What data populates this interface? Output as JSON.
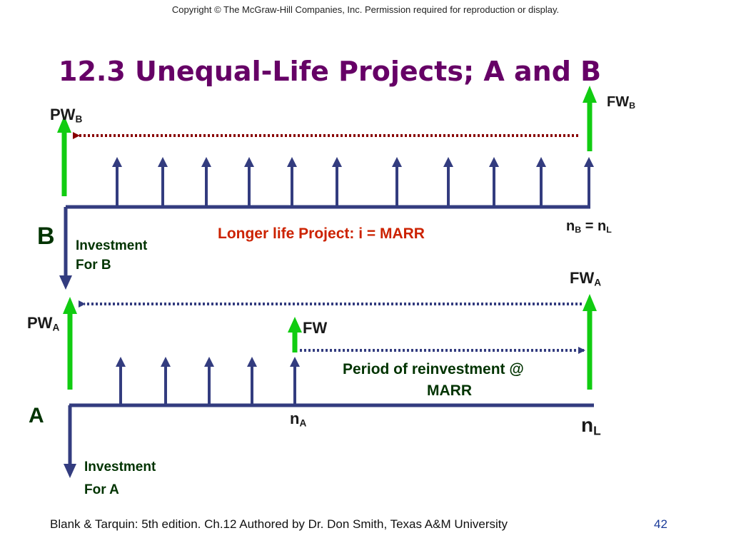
{
  "copyright": "Copyright © The McGraw-Hill Companies, Inc. Permission required for reproduction or display.",
  "title": "12.3 Unequal-Life Projects; A and B",
  "project_b": {
    "label": "B",
    "pw": "PW",
    "pw_sub": "B",
    "fw": "FW",
    "fw_sub": "B",
    "end_label": "n",
    "end_sub1": "B",
    "end_eq": " = n",
    "end_sub2": "L",
    "investment_line1": "Investment",
    "investment_line2": "For B",
    "note": "Longer life Project: i = MARR"
  },
  "project_a": {
    "label": "A",
    "pw": "PW",
    "pw_sub": "A",
    "fw_total": "FW",
    "fw_total_sub": "A",
    "fw_mid": "FW",
    "na": "n",
    "na_sub": "A",
    "nl": "n",
    "nl_sub": "L",
    "investment_line1": "Investment",
    "investment_line2": "For A",
    "reinvest_line1": "Period of reinvestment @",
    "reinvest_line2": "MARR"
  },
  "colors": {
    "green": "#11cc11",
    "navy": "#333c7f",
    "dark_red": "#880000",
    "title": "#660066",
    "note": "#cc2200"
  },
  "footer": "Blank & Tarquin: 5th edition. Ch.12 Authored by Dr. Don Smith, Texas A&M University",
  "page_number": "42"
}
